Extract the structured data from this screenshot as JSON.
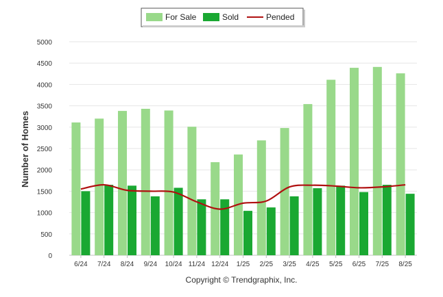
{
  "chart_data": {
    "type": "bar",
    "ylabel": "Number of Homes",
    "xlabel": "",
    "ylim": [
      0,
      5000
    ],
    "yticks": [
      0,
      500,
      1000,
      1500,
      2000,
      2500,
      3000,
      3500,
      4000,
      4500,
      5000
    ],
    "categories": [
      "6/24",
      "7/24",
      "8/24",
      "9/24",
      "10/24",
      "11/24",
      "12/24",
      "1/25",
      "2/25",
      "3/25",
      "4/25",
      "5/25",
      "6/25",
      "7/25",
      "8/25"
    ],
    "series": [
      {
        "name": "For Sale",
        "type": "bar",
        "color": "#99d98a",
        "values": [
          3110,
          3200,
          3380,
          3430,
          3390,
          3010,
          2180,
          2360,
          2690,
          2980,
          3540,
          4110,
          4390,
          4410,
          4260
        ]
      },
      {
        "name": "Sold",
        "type": "bar",
        "color": "#1aa832",
        "values": [
          1500,
          1650,
          1630,
          1380,
          1580,
          1310,
          1310,
          1040,
          1120,
          1380,
          1570,
          1630,
          1480,
          1650,
          1440
        ]
      },
      {
        "name": "Pended",
        "type": "line",
        "color": "#b01010",
        "values": [
          1550,
          1650,
          1520,
          1500,
          1480,
          1250,
          1080,
          1220,
          1270,
          1600,
          1640,
          1620,
          1580,
          1600,
          1650
        ]
      }
    ],
    "grid": true,
    "legend": "top-center"
  },
  "credit": "Copyright © Trendgraphix, Inc."
}
